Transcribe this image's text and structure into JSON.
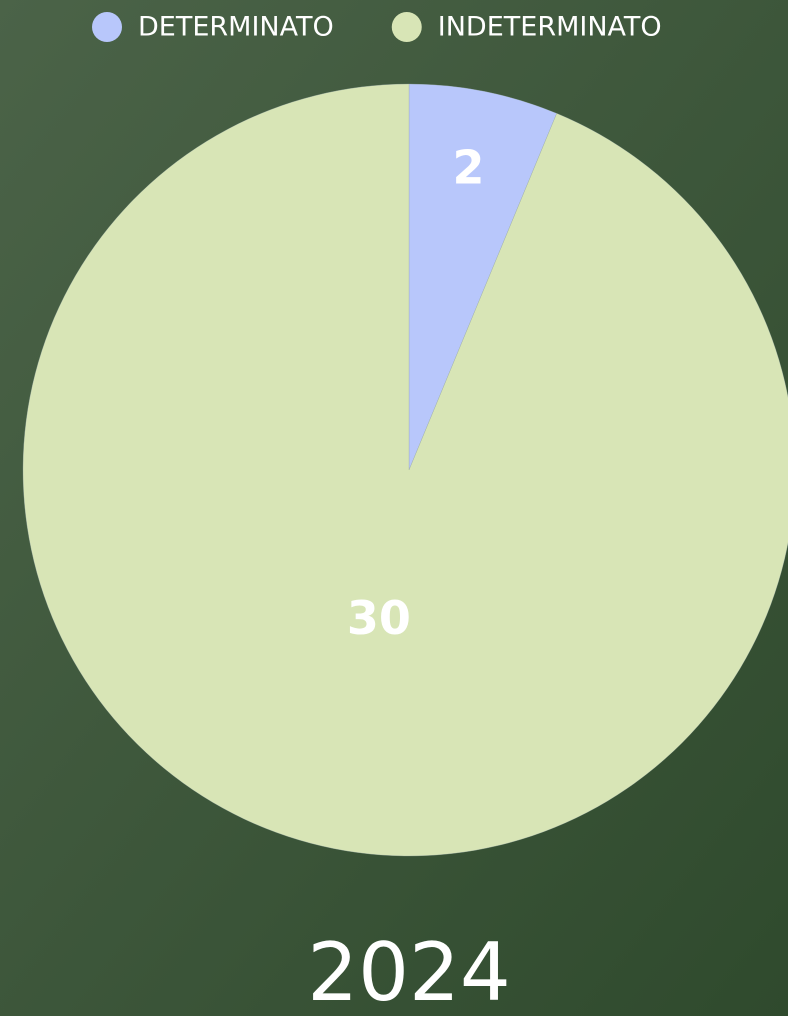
{
  "chart_data": {
    "type": "pie",
    "title": "2024",
    "categories": [
      "DETERMINATO",
      "INDETERMINATO"
    ],
    "values": [
      2,
      30
    ],
    "colors": [
      "#b8c7fb",
      "#d8e5b6"
    ],
    "legend": "top"
  }
}
